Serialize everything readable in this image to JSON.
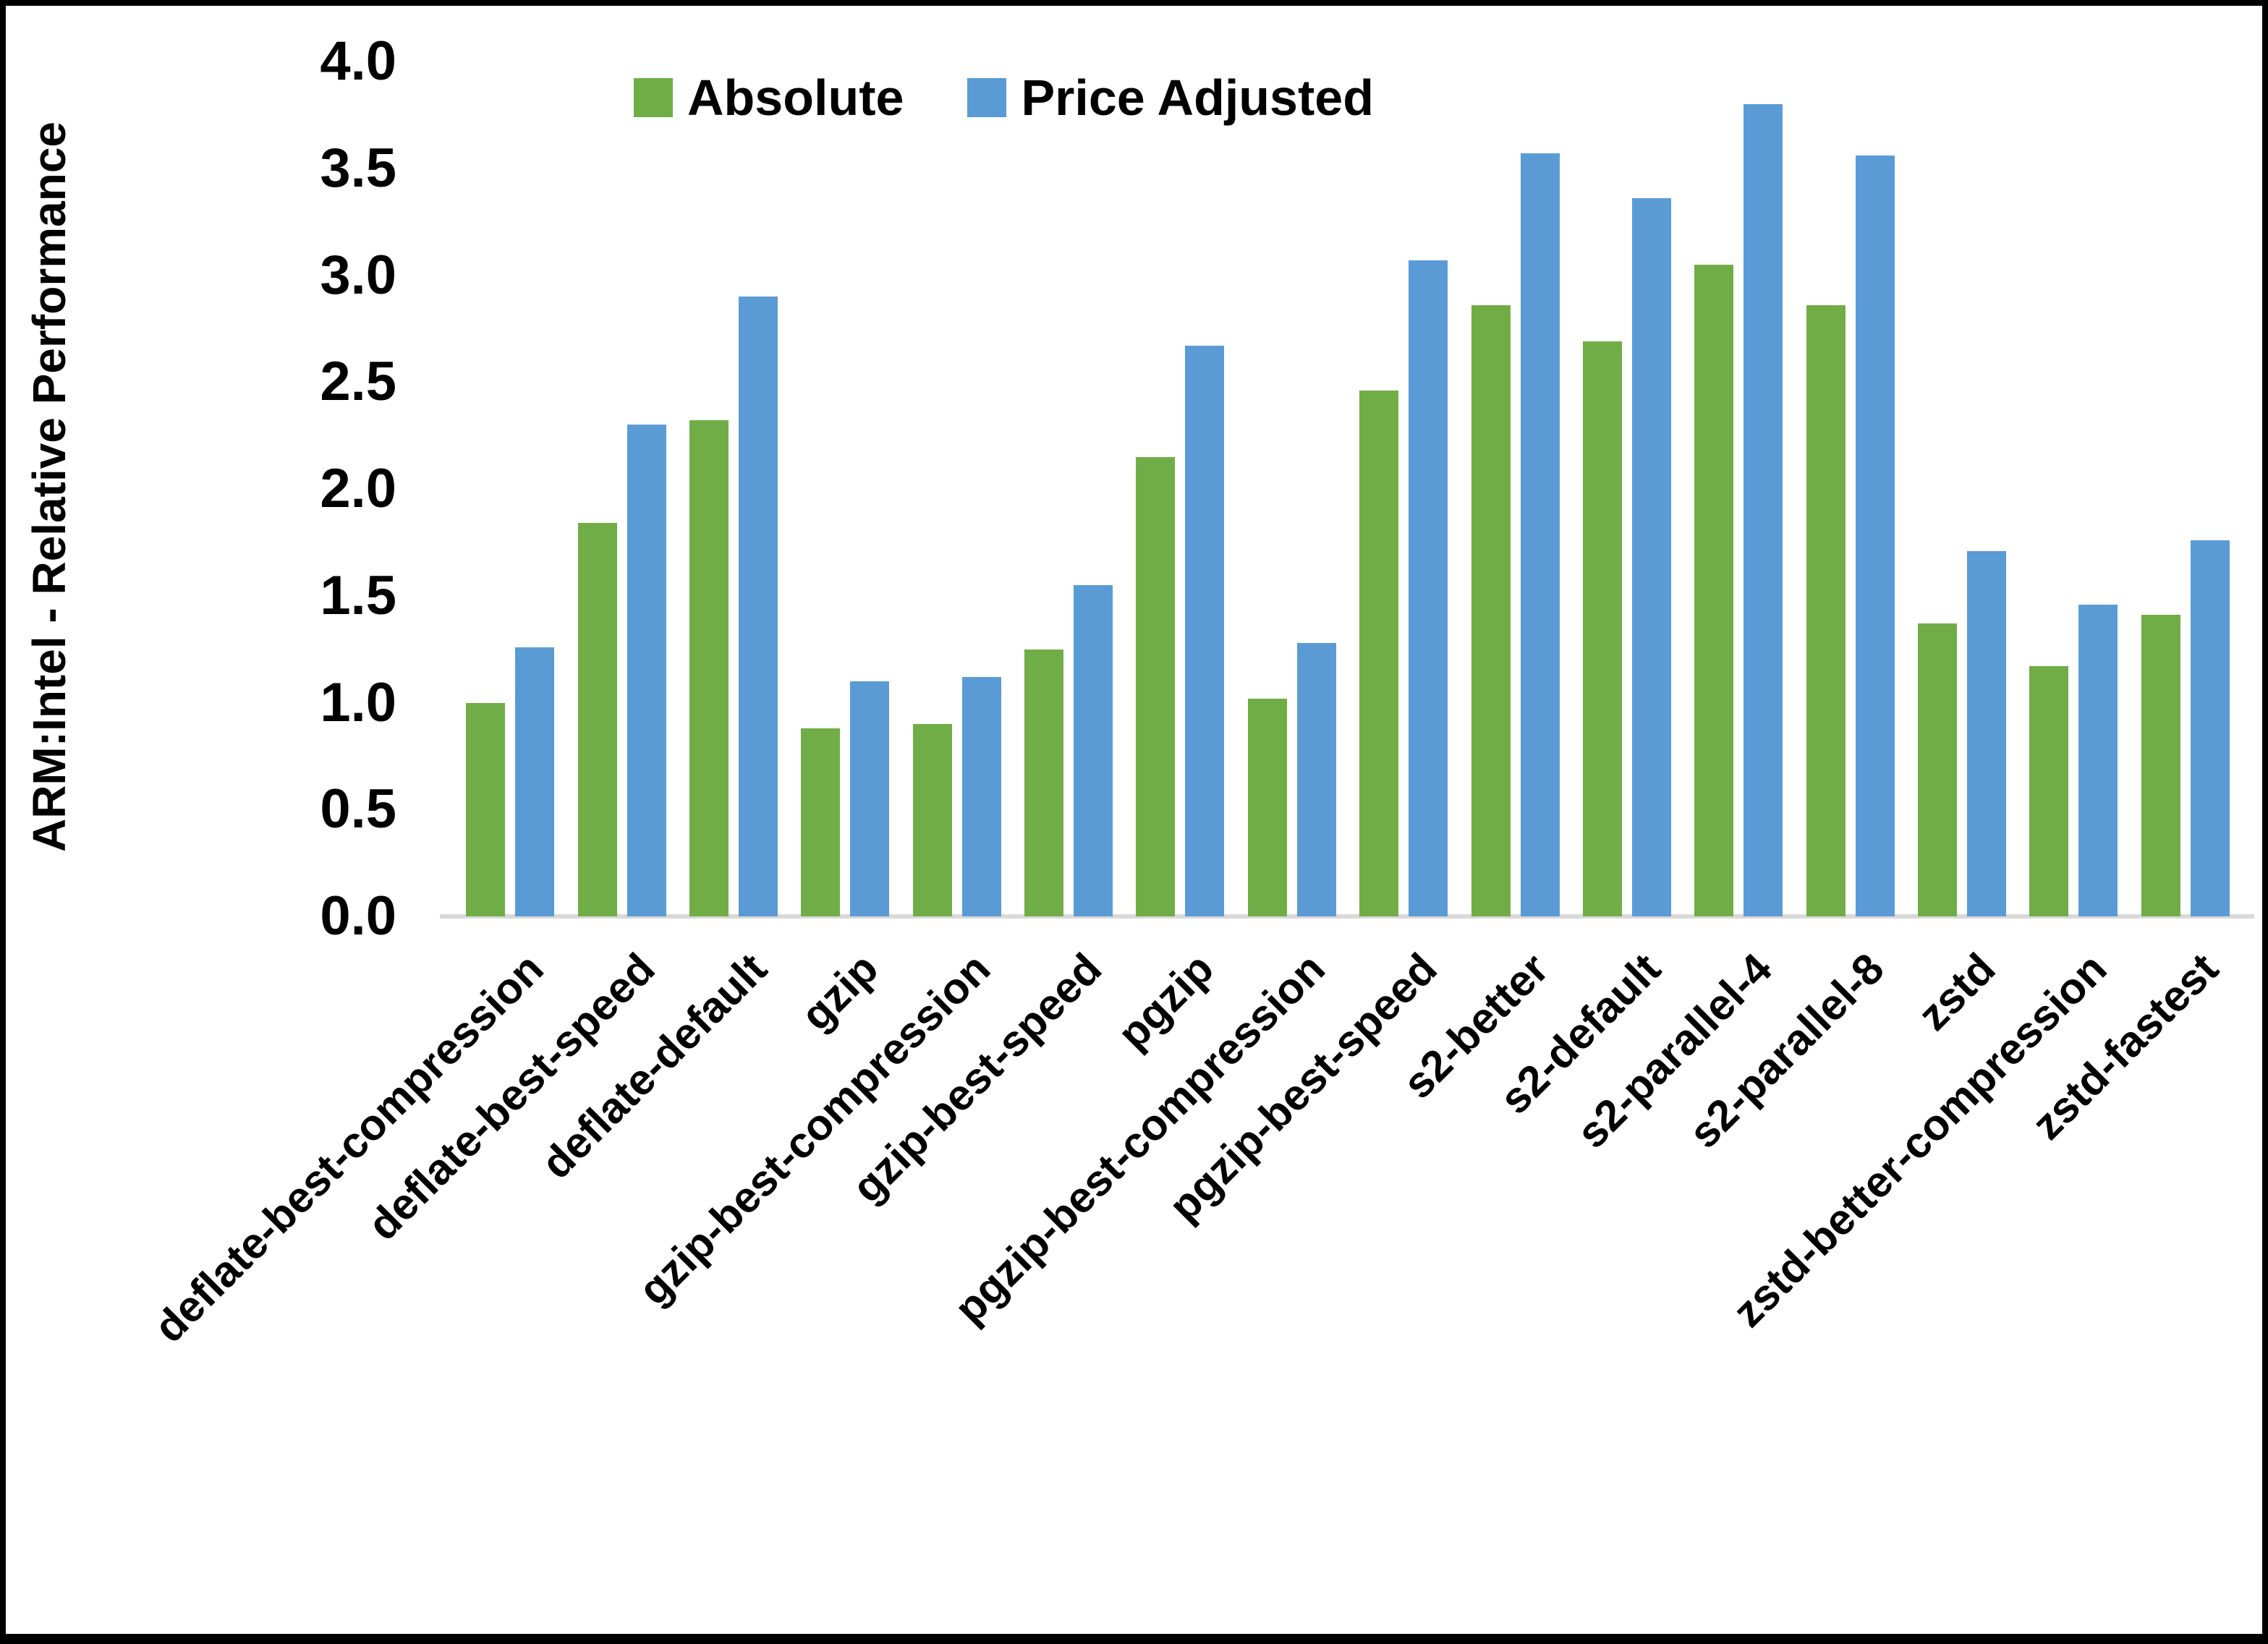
{
  "page": {
    "background": "#FFFFFF",
    "frame_color": "#000000"
  },
  "chart_data": {
    "type": "bar",
    "title": "",
    "xlabel": "",
    "ylabel": "ARM:Intel - Relative Performance",
    "ylim": [
      0.0,
      4.0
    ],
    "ytick_step": 0.5,
    "ytick_labels": [
      "0.0",
      "0.5",
      "1.0",
      "1.5",
      "2.0",
      "2.5",
      "3.0",
      "3.5",
      "4.0"
    ],
    "grid": false,
    "legend_position": "top-center-inside",
    "axis_line_color": "#D9D9D9",
    "text_color": "#000000",
    "categories": [
      "deflate-best-compression",
      "deflate-best-speed",
      "deflate-default",
      "gzip",
      "gzip-best-compression",
      "gzip-best-speed",
      "pgzip",
      "pgzip-best-compression",
      "pgzip-best-speed",
      "s2-better",
      "s2-default",
      "s2-parallel-4",
      "s2-parallel-8",
      "zstd",
      "zstd-better-compression",
      "zstd-fastest"
    ],
    "series": [
      {
        "name": "Absolute",
        "color": "#70AD47",
        "values": [
          1.0,
          1.84,
          2.32,
          0.88,
          0.9,
          1.25,
          2.15,
          1.02,
          2.46,
          2.86,
          2.69,
          3.05,
          2.86,
          1.37,
          1.17,
          1.41
        ]
      },
      {
        "name": "Price Adjusted",
        "color": "#5B9BD5",
        "values": [
          1.26,
          2.3,
          2.9,
          1.1,
          1.12,
          1.55,
          2.67,
          1.28,
          3.07,
          3.57,
          3.36,
          3.8,
          3.56,
          1.71,
          1.46,
          1.76
        ]
      }
    ]
  }
}
